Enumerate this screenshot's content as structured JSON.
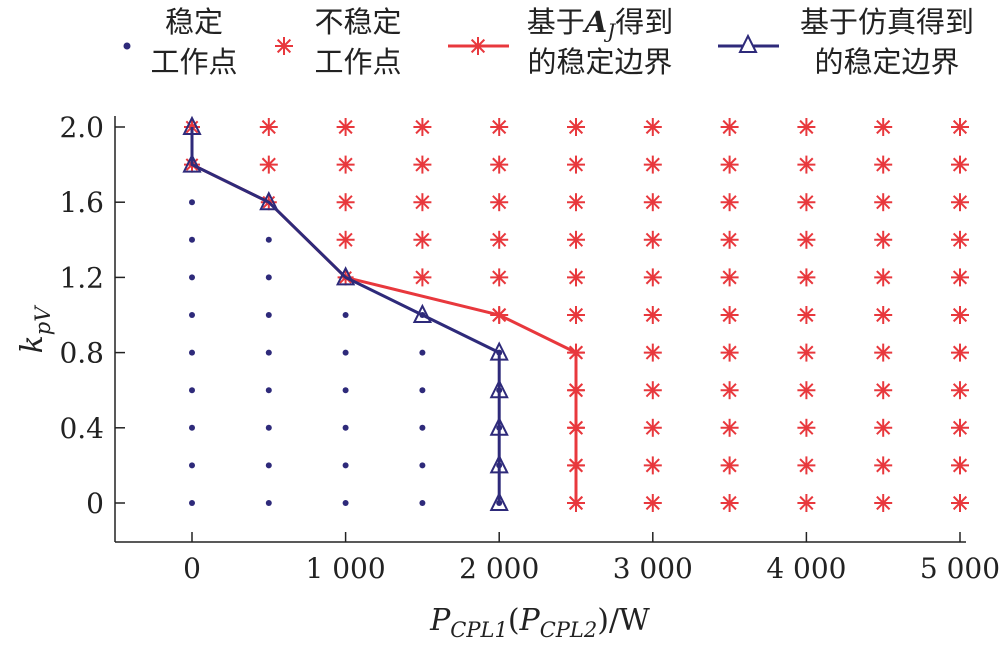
{
  "legend": [
    {
      "line1": "稳定",
      "line2": "工作点"
    },
    {
      "line1": "不稳定",
      "line2": "工作点"
    },
    {
      "line1_pre": "基于",
      "line1_sym": "A",
      "line1_sub": "J",
      "line1_post": "得到",
      "line2": "的稳定边界"
    },
    {
      "line1": "基于仿真得到",
      "line2": "的稳定边界"
    }
  ],
  "chart_data": {
    "type": "scatter",
    "xlabel": {
      "main": "P",
      "sub1": "CPL1",
      "open": "(",
      "sub_main": "P",
      "sub2": "CPL2",
      "close": ")/W"
    },
    "ylabel": {
      "main": "k",
      "sub": "pV"
    },
    "xlim": [
      -500,
      5000
    ],
    "ylim": [
      -0.2,
      2.0
    ],
    "x_ticks": [
      0,
      1000,
      2000,
      3000,
      4000,
      5000
    ],
    "x_tick_labels": [
      "0",
      "1 000",
      "2 000",
      "3 000",
      "4 000",
      "5 000"
    ],
    "y_ticks": [
      0,
      0.4,
      0.8,
      1.2,
      1.6,
      2.0
    ],
    "y_tick_labels": [
      "0",
      "0.4",
      "0.8",
      "1.2",
      "1.6",
      "2.0"
    ],
    "grid": false,
    "legend_position": "top",
    "colors": {
      "stable": "#2e2a7a",
      "unstable": "#e8383d",
      "aj_boundary": "#e8383d",
      "sim_boundary": "#2e2a7a"
    },
    "series": [
      {
        "name": "稳定工作点",
        "marker": "dot",
        "points": [
          [
            0,
            0
          ],
          [
            0,
            0.2
          ],
          [
            0,
            0.4
          ],
          [
            0,
            0.6
          ],
          [
            0,
            0.8
          ],
          [
            0,
            1.0
          ],
          [
            0,
            1.2
          ],
          [
            0,
            1.4
          ],
          [
            0,
            1.6
          ],
          [
            0,
            1.8
          ],
          [
            0,
            2.0
          ],
          [
            500,
            0
          ],
          [
            500,
            0.2
          ],
          [
            500,
            0.4
          ],
          [
            500,
            0.6
          ],
          [
            500,
            0.8
          ],
          [
            500,
            1.0
          ],
          [
            500,
            1.2
          ],
          [
            500,
            1.4
          ],
          [
            500,
            1.6
          ],
          [
            1000,
            0
          ],
          [
            1000,
            0.2
          ],
          [
            1000,
            0.4
          ],
          [
            1000,
            0.6
          ],
          [
            1000,
            0.8
          ],
          [
            1000,
            1.0
          ],
          [
            1000,
            1.2
          ],
          [
            1500,
            0
          ],
          [
            1500,
            0.2
          ],
          [
            1500,
            0.4
          ],
          [
            1500,
            0.6
          ],
          [
            1500,
            0.8
          ],
          [
            1500,
            1.0
          ],
          [
            2000,
            0
          ],
          [
            2000,
            0.2
          ],
          [
            2000,
            0.4
          ],
          [
            2000,
            0.6
          ],
          [
            2000,
            0.8
          ]
        ]
      },
      {
        "name": "不稳定工作点",
        "marker": "asterisk",
        "points": [
          [
            500,
            1.8
          ],
          [
            500,
            2.0
          ],
          [
            1000,
            1.4
          ],
          [
            1000,
            1.6
          ],
          [
            1000,
            1.8
          ],
          [
            1000,
            2.0
          ],
          [
            1500,
            1.2
          ],
          [
            1500,
            1.4
          ],
          [
            1500,
            1.6
          ],
          [
            1500,
            1.8
          ],
          [
            1500,
            2.0
          ],
          [
            2000,
            1.0
          ],
          [
            2000,
            1.2
          ],
          [
            2000,
            1.4
          ],
          [
            2000,
            1.6
          ],
          [
            2000,
            1.8
          ],
          [
            2000,
            2.0
          ],
          [
            2500,
            0
          ],
          [
            2500,
            0.2
          ],
          [
            2500,
            0.4
          ],
          [
            2500,
            0.6
          ],
          [
            2500,
            0.8
          ],
          [
            2500,
            1.0
          ],
          [
            2500,
            1.2
          ],
          [
            2500,
            1.4
          ],
          [
            2500,
            1.6
          ],
          [
            2500,
            1.8
          ],
          [
            2500,
            2.0
          ],
          [
            3000,
            0
          ],
          [
            3000,
            0.2
          ],
          [
            3000,
            0.4
          ],
          [
            3000,
            0.6
          ],
          [
            3000,
            0.8
          ],
          [
            3000,
            1.0
          ],
          [
            3000,
            1.2
          ],
          [
            3000,
            1.4
          ],
          [
            3000,
            1.6
          ],
          [
            3000,
            1.8
          ],
          [
            3000,
            2.0
          ],
          [
            3500,
            0
          ],
          [
            3500,
            0.2
          ],
          [
            3500,
            0.4
          ],
          [
            3500,
            0.6
          ],
          [
            3500,
            0.8
          ],
          [
            3500,
            1.0
          ],
          [
            3500,
            1.2
          ],
          [
            3500,
            1.4
          ],
          [
            3500,
            1.6
          ],
          [
            3500,
            1.8
          ],
          [
            3500,
            2.0
          ],
          [
            4000,
            0
          ],
          [
            4000,
            0.2
          ],
          [
            4000,
            0.4
          ],
          [
            4000,
            0.6
          ],
          [
            4000,
            0.8
          ],
          [
            4000,
            1.0
          ],
          [
            4000,
            1.2
          ],
          [
            4000,
            1.4
          ],
          [
            4000,
            1.6
          ],
          [
            4000,
            1.8
          ],
          [
            4000,
            2.0
          ],
          [
            4500,
            0
          ],
          [
            4500,
            0.2
          ],
          [
            4500,
            0.4
          ],
          [
            4500,
            0.6
          ],
          [
            4500,
            0.8
          ],
          [
            4500,
            1.0
          ],
          [
            4500,
            1.2
          ],
          [
            4500,
            1.4
          ],
          [
            4500,
            1.6
          ],
          [
            4500,
            1.8
          ],
          [
            4500,
            2.0
          ],
          [
            5000,
            0
          ],
          [
            5000,
            0.2
          ],
          [
            5000,
            0.4
          ],
          [
            5000,
            0.6
          ],
          [
            5000,
            0.8
          ],
          [
            5000,
            1.0
          ],
          [
            5000,
            1.2
          ],
          [
            5000,
            1.4
          ],
          [
            5000,
            1.6
          ],
          [
            5000,
            1.8
          ],
          [
            5000,
            2.0
          ]
        ]
      },
      {
        "name": "基于A_J得到的稳定边界",
        "marker": "asterisk-line",
        "points": [
          [
            0,
            2.0
          ],
          [
            0,
            1.8
          ],
          [
            500,
            1.6
          ],
          [
            1000,
            1.2
          ],
          [
            2000,
            1.0
          ],
          [
            2500,
            0.8
          ],
          [
            2500,
            0.6
          ],
          [
            2500,
            0.4
          ],
          [
            2500,
            0.2
          ],
          [
            2500,
            0
          ]
        ]
      },
      {
        "name": "基于仿真得到的稳定边界",
        "marker": "triangle-line",
        "points": [
          [
            0,
            2.0
          ],
          [
            0,
            1.8
          ],
          [
            500,
            1.6
          ],
          [
            1000,
            1.2
          ],
          [
            1500,
            1.0
          ],
          [
            2000,
            0.8
          ],
          [
            2000,
            0.6
          ],
          [
            2000,
            0.4
          ],
          [
            2000,
            0.2
          ],
          [
            2000,
            0
          ]
        ]
      }
    ]
  }
}
